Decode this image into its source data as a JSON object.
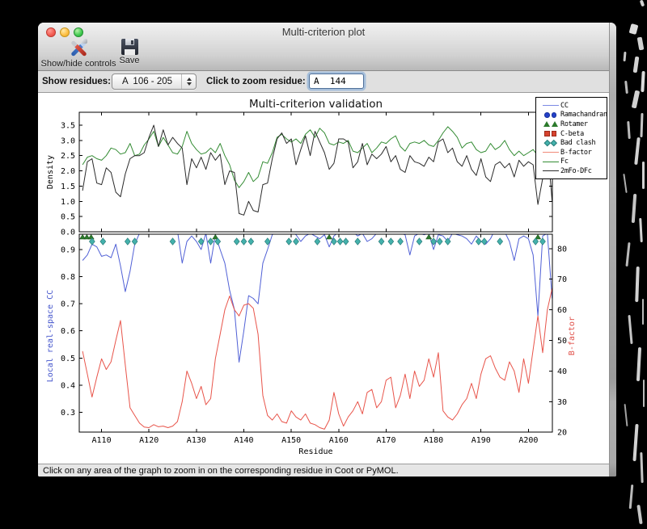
{
  "window": {
    "title": "Multi-criterion plot"
  },
  "toolbar": {
    "items": [
      {
        "label": "Show/hide controls"
      },
      {
        "label": "Save"
      }
    ]
  },
  "controls": {
    "show_residues_label": "Show residues:",
    "residue_range_value": "A  106 - 205",
    "zoom_residue_label": "Click to zoom residue:",
    "zoom_residue_value": "A  144"
  },
  "status_bar": {
    "text": "Click on any area of the graph to zoom in on the corresponding residue in Coot or PyMOL."
  },
  "legend": [
    {
      "label": "CC",
      "type": "line",
      "color": "#7c8ae4"
    },
    {
      "label": "Ramachandran",
      "type": "circles",
      "color": "#2340c8",
      "edge": "#16309a"
    },
    {
      "label": "Rotamer",
      "type": "triangles",
      "color": "#2c7a2c",
      "edge": "#1d551d"
    },
    {
      "label": "C-beta",
      "type": "squares",
      "color": "#d6432f",
      "edge": "#9e2a1a"
    },
    {
      "label": "Bad clash",
      "type": "diamonds",
      "color": "#44b1ac",
      "edge": "#2a7d79"
    },
    {
      "label": "B-factor",
      "type": "line",
      "color": "#f08a78"
    },
    {
      "label": "Fc",
      "type": "line",
      "color": "#348c34"
    },
    {
      "label": "2mFo-DFc",
      "type": "line",
      "color": "#2a2a2a"
    }
  ],
  "chart_data": {
    "type": "line",
    "title": "Multi-criterion validation",
    "xlabel": "Residue",
    "x_start": 106,
    "x_end": 205,
    "x_ticks": [
      110,
      120,
      130,
      140,
      150,
      160,
      170,
      180,
      190,
      200
    ],
    "x_tick_labels": [
      "A110",
      "A120",
      "A130",
      "A140",
      "A150",
      "A160",
      "A170",
      "A180",
      "A190",
      "A200"
    ],
    "panels": [
      {
        "name": "density",
        "ylabel": "Density",
        "ylabel_color": "#000000",
        "yticks": [
          "0.0",
          "0.5",
          "1.0",
          "1.5",
          "2.0",
          "2.5",
          "3.0",
          "3.5"
        ],
        "ytick_values": [
          0.0,
          0.5,
          1.0,
          1.5,
          2.0,
          2.5,
          3.0,
          3.5
        ],
        "ylim": [
          0,
          3.925
        ],
        "series": [
          {
            "name": "Fc",
            "color": "#348c34",
            "values": [
              2.2,
              2.45,
              2.5,
              2.4,
              2.35,
              2.5,
              2.75,
              2.7,
              2.55,
              2.6,
              2.9,
              2.5,
              2.55,
              2.85,
              3.05,
              3.3,
              2.8,
              3.1,
              2.85,
              2.6,
              2.55,
              2.8,
              3.3,
              2.9,
              2.7,
              2.55,
              2.6,
              2.75,
              2.6,
              2.9,
              2.5,
              2.2,
              1.7,
              1.45,
              1.65,
              1.95,
              1.65,
              1.8,
              2.3,
              2.25,
              2.6,
              3.1,
              3.2,
              3.05,
              2.95,
              3.05,
              2.9,
              3.2,
              3.35,
              3.1,
              3.4,
              3.25,
              2.9,
              2.85,
              2.95,
              2.9,
              3.0,
              2.65,
              2.6,
              2.75,
              2.9,
              2.6,
              2.75,
              2.95,
              2.9,
              3.05,
              3.15,
              2.8,
              2.65,
              2.9,
              2.95,
              2.9,
              3.0,
              2.85,
              2.8,
              3.0,
              3.25,
              3.45,
              3.3,
              3.1,
              2.75,
              2.9,
              2.95,
              2.7,
              2.6,
              2.65,
              2.9,
              2.7,
              2.8,
              3.0,
              2.7,
              2.5,
              2.65,
              2.5,
              2.6,
              2.7,
              2.5,
              2.6,
              2.75,
              2.45
            ]
          },
          {
            "name": "2mFo-DFc",
            "color": "#2a2a2a",
            "values": [
              1.35,
              2.3,
              2.4,
              1.6,
              1.55,
              2.1,
              1.95,
              1.3,
              1.15,
              1.9,
              2.4,
              2.5,
              2.5,
              2.6,
              3.1,
              3.5,
              2.8,
              3.35,
              2.85,
              3.1,
              2.9,
              2.75,
              1.55,
              2.4,
              2.1,
              2.45,
              2.05,
              2.6,
              2.35,
              2.55,
              1.55,
              2.0,
              1.95,
              0.6,
              0.55,
              1.0,
              0.7,
              0.65,
              1.55,
              1.6,
              2.4,
              3.05,
              3.25,
              2.9,
              3.05,
              2.2,
              2.7,
              3.15,
              2.5,
              3.3,
              2.95,
              2.6,
              2.05,
              2.25,
              3.05,
              3.05,
              2.95,
              2.1,
              2.3,
              2.9,
              2.2,
              2.55,
              2.4,
              2.55,
              2.8,
              2.3,
              2.5,
              2.05,
              1.95,
              2.5,
              2.3,
              2.25,
              2.15,
              2.45,
              2.3,
              2.95,
              3.05,
              2.6,
              2.75,
              2.3,
              2.15,
              2.5,
              2.05,
              1.85,
              2.4,
              1.8,
              1.65,
              2.2,
              2.3,
              2.1,
              2.25,
              1.8,
              2.35,
              2.15,
              2.3,
              2.2,
              0.9,
              1.75,
              2.9,
              1.0
            ]
          }
        ]
      },
      {
        "name": "cc_bfactor",
        "left_axis": {
          "label": "Local real-space CC",
          "label_color": "#4455cc",
          "yticks": [
            "0.3",
            "0.4",
            "0.5",
            "0.6",
            "0.7",
            "0.8",
            "0.9"
          ],
          "ytick_values": [
            0.3,
            0.4,
            0.5,
            0.6,
            0.7,
            0.8,
            0.9
          ],
          "ylim": [
            0.2269,
            0.9567
          ]
        },
        "right_axis": {
          "label": "B-factor",
          "label_color": "#e0514a",
          "yticks": [
            "20",
            "30",
            "40",
            "50",
            "60",
            "70",
            "80"
          ],
          "ytick_values": [
            20,
            30,
            40,
            50,
            60,
            70,
            80
          ],
          "ylim": [
            20.06,
            84.69
          ]
        },
        "series": [
          {
            "name": "CC",
            "axis": "left",
            "color": "#5060d6",
            "values": [
              0.86,
              0.88,
              0.92,
              0.91,
              0.875,
              0.88,
              0.87,
              0.92,
              0.84,
              0.745,
              0.82,
              0.92,
              0.96,
              0.97,
              0.985,
              0.99,
              0.985,
              0.98,
              0.975,
              0.98,
              0.97,
              0.85,
              0.93,
              0.95,
              0.93,
              0.9,
              0.96,
              0.85,
              0.955,
              0.9,
              0.85,
              0.75,
              0.68,
              0.485,
              0.6,
              0.73,
              0.72,
              0.7,
              0.85,
              0.9,
              0.955,
              0.965,
              0.97,
              0.96,
              0.965,
              0.955,
              0.93,
              0.95,
              0.96,
              0.95,
              0.94,
              0.955,
              0.91,
              0.95,
              0.965,
              0.97,
              0.96,
              0.965,
              0.95,
              0.96,
              0.93,
              0.94,
              0.96,
              0.965,
              0.97,
              0.96,
              0.965,
              0.96,
              0.955,
              0.88,
              0.95,
              0.96,
              0.955,
              0.96,
              0.9,
              0.955,
              0.95,
              0.93,
              0.96,
              0.955,
              0.95,
              0.94,
              0.92,
              0.95,
              0.93,
              0.92,
              0.94,
              0.975,
              0.98,
              0.965,
              0.93,
              0.86,
              0.94,
              0.95,
              0.94,
              0.88,
              0.655,
              0.95,
              0.96,
              0.72
            ]
          },
          {
            "name": "B-factor",
            "axis": "right",
            "color": "#e8544a",
            "values": [
              46.5,
              39,
              31.5,
              38,
              44,
              40.5,
              43,
              50,
              56.5,
              42,
              28,
              25.5,
              23,
              21.7,
              21.5,
              22.5,
              21.8,
              22,
              21.5,
              22,
              23.5,
              30,
              40,
              36,
              31,
              35,
              29,
              31,
              44,
              52,
              60,
              64.5,
              60,
              58,
              61.5,
              62,
              60.5,
              52,
              32,
              25.5,
              24,
              26,
              23.5,
              23,
              27,
              25,
              24,
              26,
              23,
              22.5,
              21.5,
              21,
              24,
              33,
              26,
              22,
              25,
              27,
              30,
              26,
              33,
              34,
              28,
              30,
              37,
              38,
              28,
              32,
              39,
              31,
              40,
              35,
              37,
              44,
              38,
              46,
              27,
              25,
              24,
              26,
              29,
              31,
              36,
              31,
              39,
              44,
              45,
              41,
              38,
              37,
              43,
              40,
              33,
              44,
              36,
              47,
              58,
              46,
              60,
              67
            ]
          }
        ],
        "markers": [
          {
            "name": "Rotamer",
            "shape": "triangle",
            "color": "#2c7a2c",
            "edge": "#1d551d",
            "residues": [
              106,
              106.9,
              107.8,
              134,
              158,
              179,
              202
            ]
          },
          {
            "name": "Bad clash",
            "shape": "diamond",
            "color": "#44b1ac",
            "edge": "#2a7d79",
            "residues": [
              108,
              110.3,
              115.5,
              117,
              125,
              131,
              133,
              134.5,
              138.5,
              140,
              141.5,
              145,
              149.5,
              151,
              155.5,
              159,
              160.3,
              161.5,
              164,
              169,
              171,
              173,
              177,
              180,
              181.3,
              183,
              189.5,
              190.7,
              194,
              201.5,
              203
            ]
          }
        ]
      }
    ]
  }
}
